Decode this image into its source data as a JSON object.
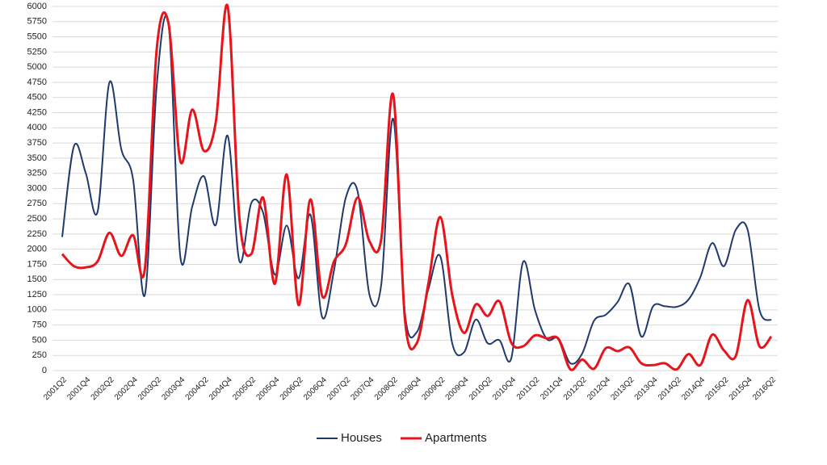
{
  "chart_data": {
    "type": "line",
    "categories": [
      "2001Q2",
      null,
      "2001Q4",
      null,
      "2002Q2",
      null,
      "2002Q4",
      null,
      "2003Q2",
      null,
      "2003Q4",
      null,
      "2004Q2",
      null,
      "2004Q4",
      null,
      "2005Q2",
      null,
      "2005Q4",
      null,
      "2006Q2",
      null,
      "2006Q4",
      null,
      "2007Q2",
      null,
      "2007Q4",
      null,
      "2008Q2",
      null,
      "2008Q4",
      null,
      "2009Q2",
      null,
      "2009Q4",
      null,
      "2010Q2",
      null,
      "2010Q4",
      null,
      "2011Q2",
      null,
      "2011Q4",
      null,
      "2012Q2",
      null,
      "2012Q4",
      null,
      "2013Q2",
      null,
      "2013Q4",
      null,
      "2014Q2",
      null,
      "2014Q4",
      null,
      "2015Q2",
      null,
      "2015Q4",
      null,
      "2016Q2"
    ],
    "series": [
      {
        "name": "Houses",
        "color": "#1f3a6e",
        "values": [
          2200,
          3700,
          3250,
          2620,
          4750,
          3650,
          3150,
          1250,
          4700,
          5700,
          1870,
          2700,
          3200,
          2400,
          3870,
          1800,
          2760,
          2600,
          1580,
          2390,
          1520,
          2570,
          880,
          1650,
          2850,
          2950,
          1250,
          1420,
          4150,
          950,
          630,
          1350,
          1880,
          450,
          300,
          840,
          450,
          500,
          200,
          1790,
          1000,
          520,
          530,
          120,
          280,
          820,
          920,
          1130,
          1420,
          560,
          1060,
          1060,
          1050,
          1170,
          1540,
          2100,
          1720,
          2320,
          2320,
          1000,
          830
        ]
      },
      {
        "name": "Apartments",
        "color": "#e8141b",
        "values": [
          1920,
          1720,
          1700,
          1800,
          2270,
          1890,
          2230,
          1680,
          5300,
          5720,
          3450,
          4300,
          3620,
          4100,
          6000,
          2500,
          1920,
          2850,
          1430,
          3230,
          1080,
          2820,
          1230,
          1800,
          2080,
          2850,
          2130,
          2170,
          4550,
          850,
          450,
          1450,
          2530,
          1250,
          620,
          1090,
          900,
          1140,
          460,
          400,
          580,
          530,
          520,
          20,
          180,
          30,
          370,
          320,
          380,
          120,
          90,
          120,
          20,
          270,
          90,
          590,
          330,
          240,
          1160,
          400,
          560
        ]
      }
    ],
    "ylim": [
      0,
      6000
    ],
    "yticks": [
      0,
      250,
      500,
      750,
      1000,
      1250,
      1500,
      1750,
      2000,
      2250,
      2500,
      2750,
      3000,
      3250,
      3500,
      3750,
      4000,
      4250,
      4500,
      4750,
      5000,
      5250,
      5500,
      5750,
      6000
    ],
    "grid": true,
    "legend": "bottom"
  }
}
